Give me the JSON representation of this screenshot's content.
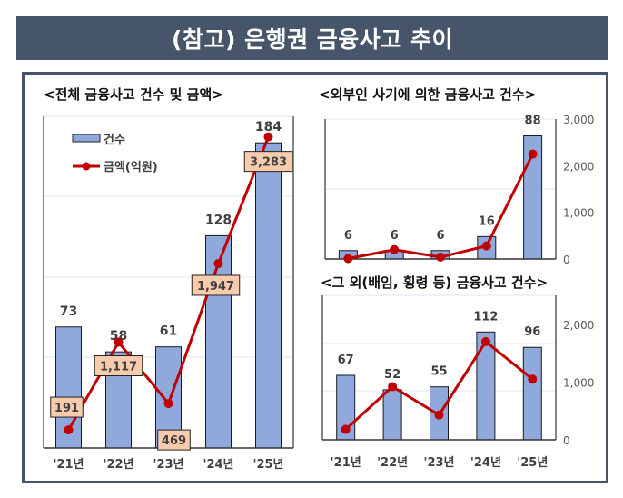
{
  "header": {
    "title": "(참고) 은행권 금융사고 추이"
  },
  "colors": {
    "bar": "#8FA9DC",
    "bar_border": "#1a1a1a",
    "line": "#C00000",
    "label_box": "#F8CBAD",
    "title_bg": "#465569"
  },
  "chart_data": [
    {
      "type": "bar+line",
      "title": "<전체 금융사고 건수 및 금액>",
      "categories": [
        "'21년",
        "'22년",
        "'23년",
        "'24년",
        "'25년"
      ],
      "legend": [
        "건수",
        "금액(억원)"
      ],
      "legend_position": "top-left",
      "series": [
        {
          "name": "건수",
          "type": "bar",
          "values": [
            73,
            58,
            61,
            128,
            184
          ],
          "labels": [
            "73",
            "58",
            "61",
            "128",
            "184"
          ]
        },
        {
          "name": "금액(억원)",
          "type": "line",
          "values": [
            191,
            1117,
            469,
            1947,
            3283
          ],
          "labels": [
            "191",
            "1,117",
            "469",
            "1,947",
            "3,283"
          ]
        }
      ],
      "grid": true
    },
    {
      "type": "bar+line",
      "title": "<외부인 사기에 의한 금융사고 건수>",
      "categories": [
        "'21년",
        "'22년",
        "'23년",
        "'24년",
        "'25년"
      ],
      "y2_ticks": [
        "0",
        "1,000",
        "2,000",
        "3,000"
      ],
      "y2lim": [
        0,
        3000
      ],
      "series": [
        {
          "name": "건수",
          "type": "bar",
          "values": [
            6,
            6,
            6,
            16,
            88
          ],
          "labels": [
            "6",
            "6",
            "6",
            "16",
            "88"
          ]
        },
        {
          "name": "금액(억원)",
          "type": "line",
          "values": [
            10,
            200,
            40,
            280,
            2250
          ]
        }
      ],
      "grid": true
    },
    {
      "type": "bar+line",
      "title": "<그 외(배임, 횡령 등) 금융사고 건수>",
      "categories": [
        "'21년",
        "'22년",
        "'23년",
        "'24년",
        "'25년"
      ],
      "y2_ticks": [
        "0",
        "1,000",
        "2,000"
      ],
      "y2lim": [
        0,
        2500
      ],
      "series": [
        {
          "name": "건수",
          "type": "bar",
          "values": [
            67,
            52,
            55,
            112,
            96
          ],
          "labels": [
            "67",
            "52",
            "55",
            "112",
            "96"
          ]
        },
        {
          "name": "금액(억원)",
          "type": "line",
          "values": [
            180,
            920,
            430,
            1700,
            1050
          ]
        }
      ],
      "grid": true
    }
  ]
}
